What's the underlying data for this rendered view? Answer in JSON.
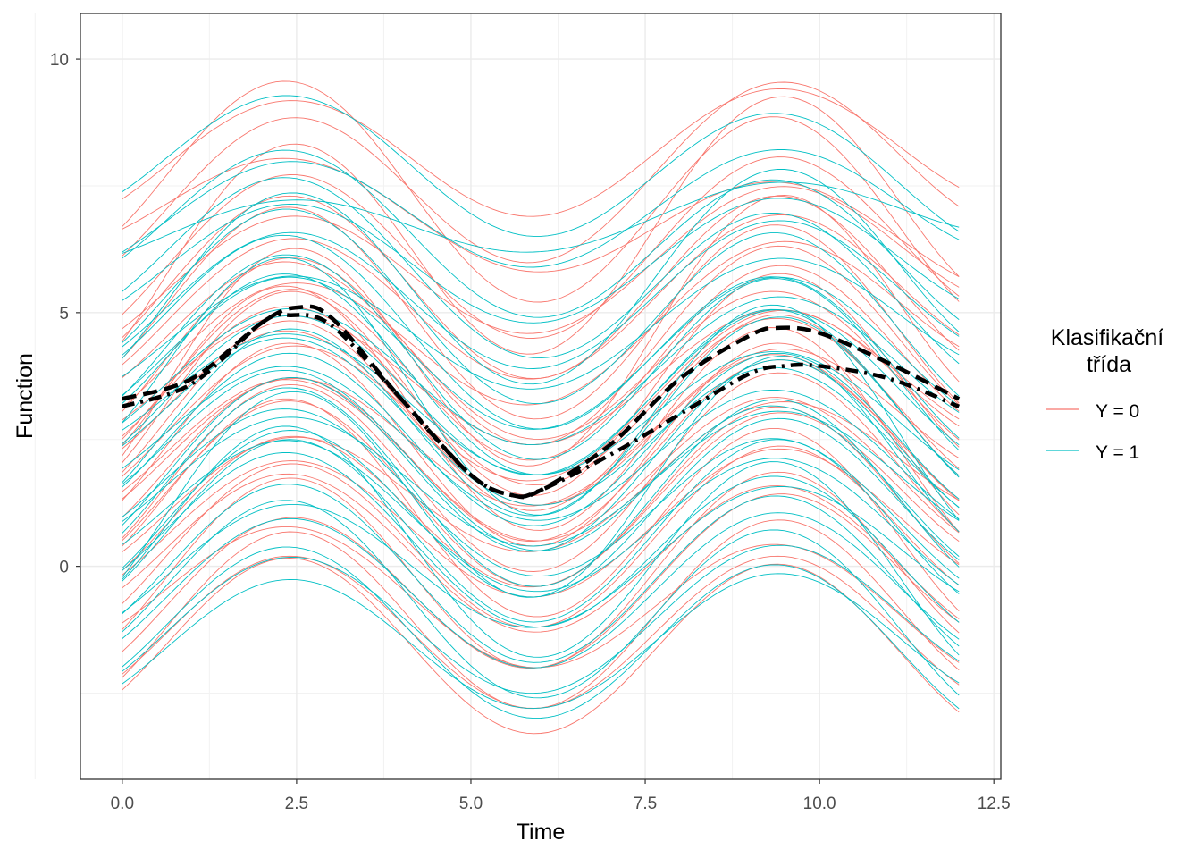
{
  "chart_data": {
    "type": "line",
    "xlabel": "Time",
    "ylabel": "Function",
    "xlim": [
      -0.6,
      12.6
    ],
    "ylim": [
      -4.2,
      10.9
    ],
    "x_ticks": [
      "0.0",
      "2.5",
      "5.0",
      "7.5",
      "10.0",
      "12.5"
    ],
    "x_tick_values": [
      0,
      2.5,
      5,
      7.5,
      10,
      12.5
    ],
    "y_ticks": [
      "0",
      "5",
      "10"
    ],
    "y_tick_values": [
      0,
      5,
      10
    ],
    "grid": true,
    "legend": {
      "title_line1": "Klasifikační",
      "title_line2": "třída",
      "placement": "right",
      "entries": [
        {
          "label": "Y = 0",
          "color": "#F8766D"
        },
        {
          "label": "Y = 1",
          "color": "#00BFC4"
        }
      ]
    },
    "curve_model": "y = shift + amp*sin(2*pi*(t-0.65)/7) + tilt*(t-6)/6, t in [0,12]",
    "series": [
      {
        "name": "Y = 0",
        "color": "#F8766D",
        "curves": [
          [
            8.1,
            1.2,
            0.2
          ],
          [
            7.6,
            1.6,
            0.6
          ],
          [
            6.8,
            1.0,
            -0.4
          ],
          [
            6.2,
            1.7,
            0.3
          ],
          [
            5.9,
            1.3,
            0.5
          ],
          [
            5.5,
            1.8,
            0
          ],
          [
            5.2,
            1.5,
            0.4
          ],
          [
            4.9,
            2.0,
            -0.3
          ],
          [
            4.6,
            1.4,
            0.7
          ],
          [
            4.3,
            1.9,
            0.2
          ],
          [
            4.1,
            1.6,
            -0.5
          ],
          [
            3.9,
            1.8,
            0.4
          ],
          [
            3.7,
            1.3,
            0.1
          ],
          [
            3.5,
            2.1,
            0.3
          ],
          [
            3.3,
            1.7,
            -0.2
          ],
          [
            3.2,
            1.5,
            0.6
          ],
          [
            3.0,
            1.9,
            0.1
          ],
          [
            2.8,
            1.6,
            -0.4
          ],
          [
            2.6,
            1.4,
            0.5
          ],
          [
            2.4,
            2.0,
            0
          ],
          [
            2.2,
            1.7,
            0.3
          ],
          [
            2.0,
            1.5,
            -0.3
          ],
          [
            1.8,
            1.9,
            0.2
          ],
          [
            1.6,
            1.3,
            0.6
          ],
          [
            1.4,
            1.8,
            -0.1
          ],
          [
            1.2,
            1.6,
            0.4
          ],
          [
            1.0,
            2.0,
            -0.5
          ],
          [
            0.8,
            1.4,
            0.2
          ],
          [
            0.5,
            1.7,
            0.3
          ],
          [
            0.2,
            1.5,
            -0.2
          ],
          [
            -0.1,
            1.9,
            0.1
          ],
          [
            -0.4,
            1.6,
            0.4
          ],
          [
            -0.7,
            1.3,
            -0.3
          ],
          [
            -1.0,
            1.8,
            0.2
          ],
          [
            -1.3,
            1.5,
            0
          ],
          [
            -1.6,
            1.7,
            -0.1
          ],
          [
            6.5,
            2.3,
            0.8
          ],
          [
            7.2,
            2.0,
            -0.6
          ],
          [
            4.4,
            2.4,
            0.9
          ],
          [
            2.9,
            2.2,
            -0.7
          ]
        ]
      },
      {
        "name": "Y = 1",
        "color": "#00BFC4",
        "curves": [
          [
            7.8,
            1.3,
            -0.3
          ],
          [
            7.0,
            1.1,
            0.2
          ],
          [
            6.4,
            1.5,
            -0.5
          ],
          [
            6.0,
            1.2,
            0.1
          ],
          [
            5.7,
            1.6,
            -0.6
          ],
          [
            5.3,
            1.4,
            0.2
          ],
          [
            5.0,
            1.8,
            -0.4
          ],
          [
            4.7,
            1.2,
            0.3
          ],
          [
            4.4,
            1.7,
            -0.7
          ],
          [
            4.2,
            1.5,
            0
          ],
          [
            4.0,
            1.9,
            -0.4
          ],
          [
            3.8,
            1.4,
            0.2
          ],
          [
            3.6,
            1.8,
            -0.6
          ],
          [
            3.4,
            1.6,
            0.1
          ],
          [
            3.1,
            1.3,
            -0.3
          ],
          [
            2.9,
            1.9,
            0.2
          ],
          [
            2.7,
            1.5,
            -0.5
          ],
          [
            2.5,
            1.7,
            0
          ],
          [
            2.3,
            1.4,
            -0.4
          ],
          [
            2.1,
            1.8,
            0.3
          ],
          [
            1.9,
            1.6,
            -0.6
          ],
          [
            1.7,
            1.3,
            0.1
          ],
          [
            1.5,
            1.9,
            -0.2
          ],
          [
            1.3,
            1.5,
            -0.5
          ],
          [
            1.1,
            1.7,
            0.2
          ],
          [
            0.9,
            1.4,
            -0.3
          ],
          [
            0.7,
            1.8,
            0
          ],
          [
            0.4,
            1.6,
            -0.4
          ],
          [
            0.1,
            1.3,
            0.3
          ],
          [
            -0.2,
            1.7,
            -0.2
          ],
          [
            -0.5,
            1.5,
            0.1
          ],
          [
            -0.8,
            1.8,
            -0.5
          ],
          [
            -1.1,
            1.4,
            0.2
          ],
          [
            -1.4,
            1.6,
            -0.3
          ],
          [
            -1.5,
            1.3,
            0.1
          ],
          [
            5.6,
            2.0,
            0.4
          ],
          [
            3.3,
            2.3,
            -0.8
          ],
          [
            1.6,
            2.2,
            0.6
          ],
          [
            0.3,
            2.1,
            -0.6
          ],
          [
            6.8,
            0.6,
            0.3
          ]
        ]
      }
    ],
    "mean_lines": [
      {
        "name": "mean dashed",
        "style": "dashed",
        "x": [
          0,
          1,
          2,
          2.5,
          3,
          4,
          5,
          5.6,
          6,
          7,
          8,
          9,
          9.4,
          10,
          11,
          12
        ],
        "y": [
          3.3,
          3.7,
          4.8,
          5.1,
          4.9,
          3.3,
          1.8,
          1.4,
          1.5,
          2.4,
          3.7,
          4.55,
          4.7,
          4.6,
          4.0,
          3.3
        ]
      },
      {
        "name": "mean dot-dash",
        "style": "dotdash",
        "x": [
          0,
          1,
          2,
          2.4,
          3,
          4,
          5,
          5.6,
          6,
          7,
          8,
          9,
          9.5,
          10,
          11,
          12
        ],
        "y": [
          3.15,
          3.6,
          4.8,
          4.95,
          4.75,
          3.3,
          1.8,
          1.4,
          1.5,
          2.2,
          3.0,
          3.8,
          3.95,
          3.95,
          3.7,
          3.15
        ]
      }
    ]
  }
}
